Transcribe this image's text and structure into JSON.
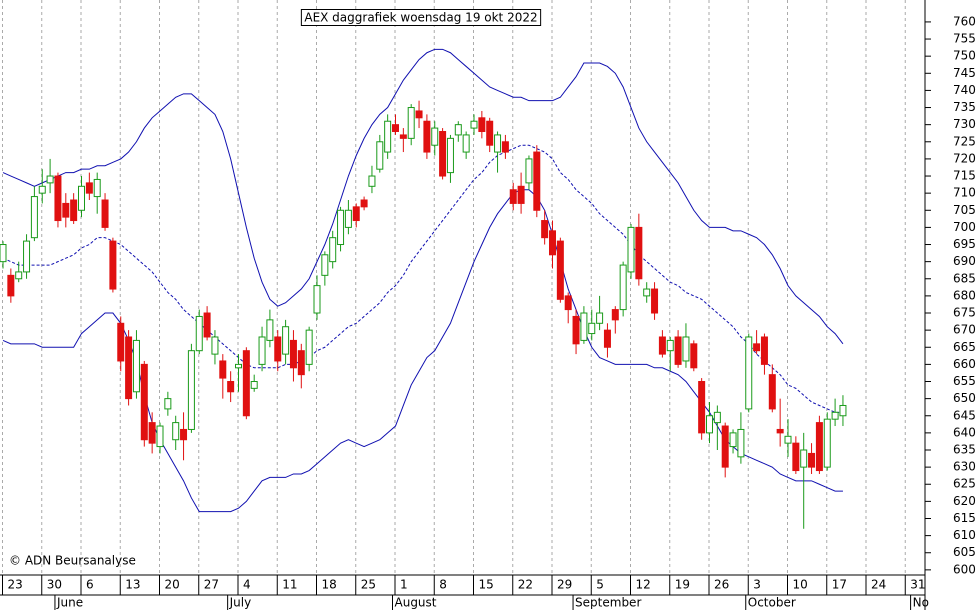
{
  "chart_data": {
    "type": "candlestick",
    "title": "AEX daggrafiek woensdag 19 okt 2022",
    "credit": "© ADN Beursanalyse",
    "categories": [
      "23",
      null,
      null,
      null,
      null,
      "30",
      null,
      null,
      null,
      null,
      "6",
      null,
      null,
      null,
      null,
      "13",
      null,
      null,
      null,
      null,
      "20",
      null,
      null,
      null,
      null,
      "27",
      null,
      null,
      null,
      null,
      "4",
      null,
      null,
      null,
      null,
      "11",
      null,
      null,
      null,
      null,
      "18",
      null,
      null,
      null,
      null,
      "25",
      null,
      null,
      null,
      null,
      "1",
      null,
      null,
      null,
      null,
      "8",
      null,
      null,
      null,
      null,
      "15",
      null,
      null,
      null,
      null,
      "22",
      null,
      null,
      null,
      null,
      "29",
      null,
      null,
      null,
      null,
      "5",
      null,
      null,
      null,
      null,
      "12",
      null,
      null,
      null,
      null,
      "19",
      null,
      null,
      null,
      null,
      "26",
      null,
      null,
      null,
      null,
      "3",
      null,
      null,
      null,
      null,
      "10",
      null,
      null,
      null,
      null,
      "17",
      null,
      null,
      null,
      null,
      "24",
      null,
      null,
      null,
      null,
      "31",
      null
    ],
    "months": [
      null,
      null,
      null,
      null,
      null,
      null,
      null,
      "June",
      null,
      null,
      null,
      null,
      null,
      null,
      null,
      null,
      null,
      null,
      null,
      null,
      null,
      null,
      null,
      null,
      null,
      null,
      null,
      null,
      null,
      "July",
      null,
      null,
      null,
      null,
      null,
      null,
      null,
      null,
      null,
      null,
      null,
      null,
      null,
      null,
      null,
      null,
      null,
      null,
      null,
      null,
      "August",
      null,
      null,
      null,
      null,
      null,
      null,
      null,
      null,
      null,
      null,
      null,
      null,
      null,
      null,
      null,
      null,
      null,
      null,
      null,
      null,
      null,
      null,
      "September",
      null,
      null,
      null,
      null,
      null,
      null,
      null,
      null,
      null,
      null,
      null,
      null,
      null,
      null,
      null,
      null,
      null,
      null,
      null,
      null,
      null,
      "October",
      null,
      null,
      null,
      null,
      null,
      null,
      null,
      null,
      null,
      null,
      null,
      null,
      null,
      null,
      null,
      null,
      null,
      null,
      null,
      null,
      "No"
    ],
    "open": [
      690,
      686,
      685,
      687,
      697,
      710,
      713,
      715,
      707,
      708,
      705,
      713,
      709,
      708,
      696,
      672,
      668,
      652,
      660,
      643,
      636,
      647,
      638,
      641,
      641,
      664,
      675,
      663,
      661,
      655,
      659,
      664,
      653,
      660,
      667,
      668,
      663,
      667,
      664,
      660,
      675,
      686,
      690,
      695,
      700,
      706,
      708,
      712,
      717,
      722,
      730,
      727,
      726,
      734,
      731,
      724,
      728,
      716,
      727,
      722,
      729,
      732,
      731,
      722,
      725,
      711,
      712,
      713,
      722,
      702,
      699,
      696,
      680,
      674,
      667,
      669,
      672,
      670,
      676,
      676,
      687,
      700,
      680,
      682,
      668,
      664,
      668,
      661,
      666,
      655,
      640,
      643,
      642,
      636,
      633,
      647,
      666,
      668,
      657,
      641,
      637,
      637,
      630,
      634,
      643,
      630,
      644,
      645,
      null,
      null,
      null,
      null,
      null,
      null,
      null,
      null,
      null
    ],
    "high": [
      696,
      688,
      690,
      698,
      712,
      717,
      720,
      716,
      710,
      710,
      715,
      716,
      716,
      710,
      697,
      674,
      670,
      670,
      661,
      646,
      643,
      652,
      645,
      646,
      666,
      676,
      677,
      670,
      663,
      658,
      663,
      665,
      657,
      671,
      676,
      670,
      673,
      670,
      666,
      671,
      686,
      693,
      699,
      706,
      708,
      707,
      709,
      718,
      727,
      733,
      733,
      729,
      736,
      737,
      733,
      731,
      729,
      727,
      731,
      728,
      733,
      734,
      732,
      728,
      727,
      713,
      716,
      721,
      724,
      705,
      702,
      697,
      681,
      676,
      677,
      676,
      680,
      672,
      677,
      690,
      701,
      704,
      684,
      684,
      670,
      668,
      670,
      672,
      667,
      656,
      649,
      648,
      643,
      641,
      646,
      669,
      670,
      669,
      660,
      650,
      644,
      639,
      640,
      637,
      645,
      646,
      650,
      651,
      null,
      null,
      null,
      null,
      null,
      null,
      null,
      null,
      null
    ],
    "low": [
      688,
      678,
      684,
      685,
      696,
      707,
      710,
      700,
      700,
      701,
      703,
      708,
      704,
      699,
      681,
      658,
      648,
      650,
      636,
      634,
      634,
      645,
      635,
      632,
      640,
      663,
      667,
      660,
      650,
      649,
      652,
      644,
      652,
      658,
      665,
      658,
      660,
      655,
      653,
      658,
      673,
      683,
      688,
      693,
      698,
      700,
      705,
      710,
      716,
      720,
      727,
      722,
      724,
      729,
      720,
      721,
      714,
      713,
      725,
      720,
      727,
      726,
      722,
      716,
      720,
      705,
      704,
      711,
      703,
      695,
      688,
      678,
      672,
      663,
      666,
      667,
      670,
      662,
      669,
      674,
      685,
      683,
      678,
      673,
      662,
      658,
      659,
      659,
      658,
      638,
      637,
      635,
      627,
      634,
      631,
      646,
      663,
      657,
      646,
      636,
      633,
      628,
      612,
      628,
      628,
      629,
      642,
      642,
      null,
      null,
      null,
      null,
      null,
      null,
      null,
      null,
      null
    ],
    "close": [
      695,
      680,
      687,
      696,
      709,
      712,
      715,
      702,
      703,
      702,
      712,
      710,
      714,
      700,
      682,
      661,
      650,
      667,
      638,
      637,
      642,
      650,
      643,
      638,
      664,
      674,
      668,
      668,
      656,
      652,
      660,
      645,
      655,
      668,
      673,
      661,
      671,
      659,
      657,
      670,
      683,
      692,
      697,
      705,
      705,
      702,
      706,
      715,
      725,
      731,
      728,
      726,
      735,
      732,
      722,
      729,
      715,
      726,
      730,
      727,
      731,
      728,
      724,
      727,
      722,
      707,
      707,
      720,
      705,
      697,
      692,
      679,
      676,
      666,
      675,
      672,
      675,
      665,
      673,
      689,
      700,
      685,
      682,
      675,
      663,
      667,
      660,
      668,
      659,
      640,
      645,
      646,
      630,
      640,
      641,
      668,
      664,
      660,
      647,
      640,
      639,
      629,
      635,
      630,
      629,
      644,
      646,
      648,
      null,
      null,
      null,
      null,
      null,
      null,
      null,
      null,
      null
    ],
    "up_color": "#1a9a1a",
    "down_color": "#e01010",
    "bands": [
      {
        "values": [
          716,
          715,
          714,
          713,
          712,
          713,
          714,
          715,
          716,
          716,
          717,
          717,
          718,
          718,
          719,
          720,
          722,
          725,
          729,
          732,
          734,
          736,
          738,
          739,
          739,
          737,
          735,
          733,
          728,
          720,
          710,
          700,
          691,
          684,
          679,
          677,
          678,
          680,
          682,
          685,
          690,
          695,
          701,
          708,
          715,
          721,
          726,
          730,
          733,
          735,
          739,
          743,
          746,
          749,
          751,
          752,
          752,
          751,
          749,
          747,
          745,
          743,
          741,
          740,
          739,
          738,
          738,
          737,
          737,
          737,
          737,
          738,
          741,
          744,
          748,
          748,
          748,
          747,
          745,
          741,
          735,
          729,
          725,
          722,
          719,
          716,
          713,
          709,
          705,
          702,
          700,
          700,
          700,
          699,
          699,
          698,
          697,
          695,
          692,
          688,
          683,
          680,
          678,
          676,
          674,
          671,
          669,
          666,
          null,
          null,
          null,
          null,
          null,
          null,
          null,
          null,
          null
        ],
        "color": "#1010b0",
        "dashed": false
      },
      {
        "values": [
          691,
          690,
          689,
          689,
          689,
          689,
          689,
          690,
          691,
          692,
          694,
          695,
          697,
          697,
          696,
          695,
          693,
          691,
          689,
          687,
          684,
          681,
          679,
          676,
          674,
          672,
          670,
          668,
          666,
          664,
          662,
          660,
          659,
          659,
          659,
          659,
          660,
          660,
          661,
          662,
          664,
          665,
          667,
          669,
          671,
          672,
          674,
          676,
          678,
          681,
          683,
          686,
          690,
          693,
          696,
          699,
          702,
          705,
          708,
          711,
          714,
          716,
          719,
          721,
          722,
          723,
          724,
          724,
          723,
          722,
          720,
          716,
          714,
          711,
          709,
          707,
          704,
          702,
          700,
          698,
          695,
          692,
          690,
          688,
          686,
          684,
          683,
          681,
          680,
          679,
          677,
          675,
          673,
          671,
          668,
          666,
          663,
          661,
          659,
          657,
          654,
          653,
          651,
          649,
          648,
          647,
          646,
          646,
          null,
          null,
          null,
          null,
          null,
          null,
          null,
          null,
          null
        ],
        "color": "#1010b0",
        "dashed": true
      },
      {
        "values": [
          667,
          666,
          666,
          666,
          666,
          665,
          665,
          665,
          665,
          665,
          669,
          671,
          673,
          675,
          675,
          672,
          667,
          661,
          651,
          643,
          638,
          634,
          630,
          626,
          621,
          617,
          617,
          617,
          617,
          617,
          618,
          620,
          623,
          626,
          627,
          627,
          627,
          628,
          628,
          629,
          631,
          633,
          635,
          637,
          638,
          637,
          636,
          637,
          638,
          640,
          642,
          648,
          654,
          658,
          662,
          664,
          668,
          672,
          678,
          684,
          690,
          695,
          700,
          704,
          707,
          710,
          711,
          711,
          709,
          705,
          698,
          690,
          682,
          676,
          670,
          665,
          662,
          661,
          660,
          660,
          660,
          660,
          660,
          659,
          659,
          658,
          657,
          655,
          652,
          649,
          646,
          642,
          638,
          636,
          634,
          633,
          632,
          631,
          630,
          628,
          627,
          626,
          626,
          626,
          625,
          624,
          623,
          623,
          null,
          null,
          null,
          null,
          null,
          null,
          null,
          null,
          null
        ],
        "color": "#1010b0",
        "dashed": false
      }
    ],
    "ylim": [
      598.5,
      766.4
    ],
    "yticks": [
      600,
      605,
      610,
      615,
      620,
      625,
      630,
      635,
      640,
      645,
      650,
      655,
      660,
      665,
      670,
      675,
      680,
      685,
      690,
      695,
      700,
      705,
      710,
      715,
      720,
      725,
      730,
      735,
      740,
      745,
      750,
      755,
      760
    ],
    "grid": true
  }
}
